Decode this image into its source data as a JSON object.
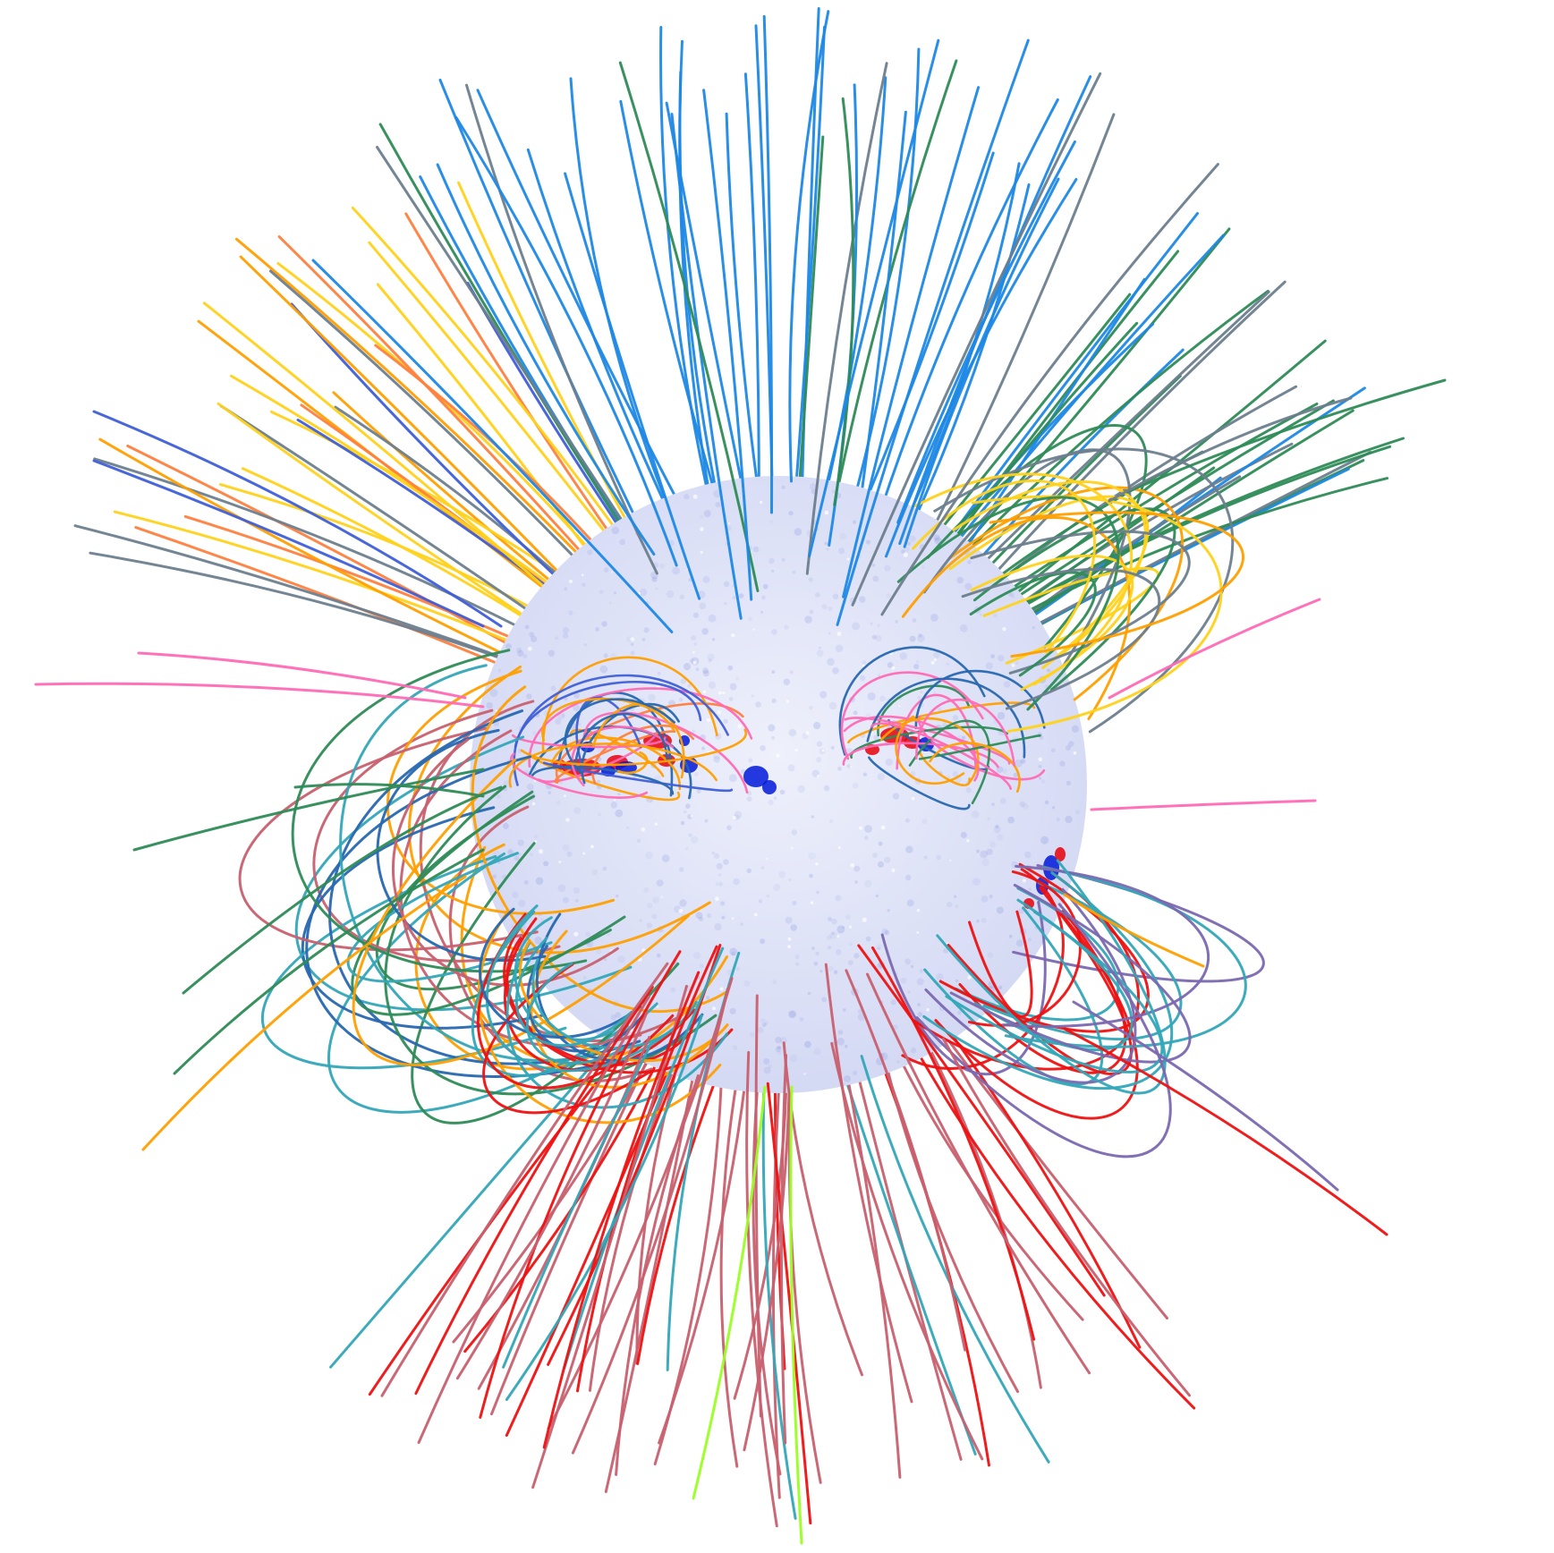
{
  "image": {
    "subject": "solar-coronal-magnetic-field-extrapolation",
    "background": "#ffffff",
    "sun": {
      "fill_center": "#eef0fb",
      "fill_edge": "#d4d9f4",
      "mottle_color": "#6e7fd6",
      "positive_polarity": "#e8000b",
      "negative_polarity": "#0018d8"
    },
    "field_line_colors": {
      "blue": "#1e88e5",
      "royal_blue": "#3f5fd8",
      "dark_blue": "#2767b0",
      "green": "#2e8b57",
      "gray": "#6d7e8e",
      "gold": "#ffd21a",
      "orange": "#ff9f00",
      "coral": "#ff7f3f",
      "pink": "#ff6ab5",
      "red": "#ee1111",
      "rose": "#c8606f",
      "teal": "#33a7b8",
      "purple": "#7b68b0",
      "lime": "#9aff22"
    }
  }
}
